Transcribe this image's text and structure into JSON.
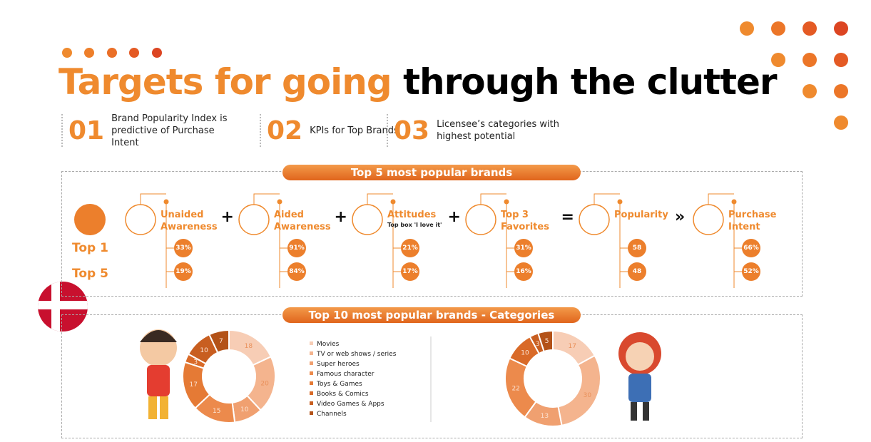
{
  "header": {
    "title_highlight": "Targets for going",
    "title_rest": "through the clutter"
  },
  "steps": [
    {
      "number": "01",
      "text": "Brand Popularity Index is predictive of Purchase Intent"
    },
    {
      "number": "02",
      "text": "KPIs for Top Brands"
    },
    {
      "number": "03",
      "text": "Licensee’s categories with highest potential"
    }
  ],
  "kpi_section": {
    "title": "Top 5 most popular brands",
    "row_labels": [
      "Top 1",
      "Top 5"
    ],
    "columns": [
      {
        "label": "Unaided Awareness",
        "top1": "33%",
        "top5": "19%"
      },
      {
        "label": "Aided Awareness",
        "top1": "91%",
        "top5": "84%"
      },
      {
        "label": "Attitudes",
        "sublabel": "Top box 'I love it'",
        "top1": "21%",
        "top5": "17%"
      },
      {
        "label": "Top 3 Favorites",
        "top1": "31%",
        "top5": "16%"
      },
      {
        "label": "Popularity",
        "top1": "58",
        "top5": "48"
      },
      {
        "label": "Purchase Intent",
        "top1": "66%",
        "top5": "52%"
      }
    ],
    "operators": [
      "+",
      "+",
      "+",
      "=",
      "»"
    ]
  },
  "category_section": {
    "title": "Top 10 most popular brands - Categories",
    "categories": [
      "Movies",
      "TV or web shows / series",
      "Super heroes",
      "Famous character",
      "Toys & Games",
      "Books & Comics",
      "Video Games & Apps",
      "Channels"
    ],
    "colors": [
      "#f7cdb5",
      "#f4b48e",
      "#f0a070",
      "#ec8a4c",
      "#e57a35",
      "#d96a28",
      "#c85e20",
      "#b35218"
    ],
    "charts": [
      {
        "values": [
          18,
          20,
          10,
          15,
          17,
          3,
          10,
          7
        ]
      },
      {
        "values": [
          17,
          30,
          13,
          22,
          null,
          10,
          3,
          5
        ]
      }
    ]
  }
}
